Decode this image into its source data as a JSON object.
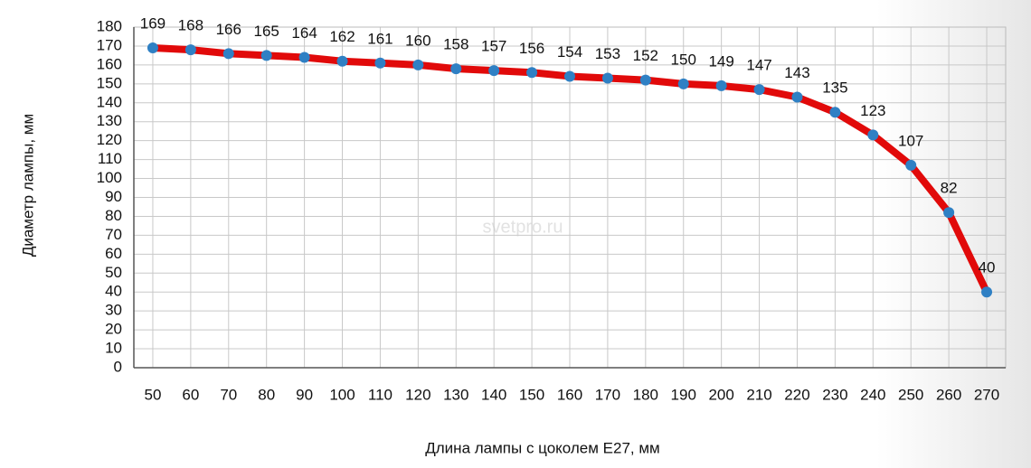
{
  "chart_data": {
    "type": "line",
    "x_label": "Длина лампы с цоколем E27, мм",
    "y_label": "Диаметр лампы, мм",
    "watermark": "svetpro.ru",
    "x": [
      50,
      60,
      70,
      80,
      90,
      100,
      110,
      120,
      130,
      140,
      150,
      160,
      170,
      180,
      190,
      200,
      210,
      220,
      230,
      240,
      250,
      260,
      270
    ],
    "series": [
      {
        "color": "#e10a0a",
        "marker_color": "#2f80c4",
        "values": [
          169,
          168,
          166,
          165,
          164,
          162,
          161,
          160,
          158,
          157,
          156,
          154,
          153,
          152,
          150,
          149,
          147,
          143,
          135,
          123,
          107,
          82,
          40
        ]
      }
    ],
    "xlim": [
      45,
      275
    ],
    "xticks": [
      50,
      60,
      70,
      80,
      90,
      100,
      110,
      120,
      130,
      140,
      150,
      160,
      170,
      180,
      190,
      200,
      210,
      220,
      230,
      240,
      250,
      260,
      270
    ],
    "ylim": [
      0,
      180
    ],
    "yticks": [
      0,
      10,
      20,
      30,
      40,
      50,
      60,
      70,
      80,
      90,
      100,
      110,
      120,
      130,
      140,
      150,
      160,
      170,
      180
    ],
    "grid": true
  }
}
